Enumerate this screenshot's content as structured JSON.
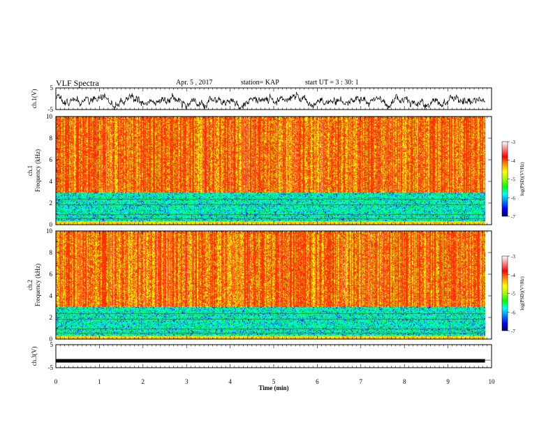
{
  "header": {
    "title": "VLF Spectra",
    "date": "Apr. 5 , 2017",
    "station": "station= KAP",
    "start_ut": "start UT = 3 : 30: 1"
  },
  "colors": {
    "background": "#ffffff",
    "axis": "#000000",
    "trace": "#000000",
    "colormap": [
      "#000080",
      "#0000ff",
      "#00a0ff",
      "#00ffd0",
      "#00ff40",
      "#a0ff00",
      "#ffff00",
      "#ffa000",
      "#ff3000",
      "#ff8080",
      "#ffffff"
    ]
  },
  "chart_data": [
    {
      "type": "line",
      "name": "ch1-waveform",
      "ylabel": "ch.1(V)",
      "xlim": [
        0,
        10
      ],
      "ylim": [
        -5,
        5
      ],
      "yticks": [
        "5",
        "-5"
      ],
      "data_end_min": 9.85,
      "series": [
        {
          "description": "noisy voltage trace oscillating around -1 V, amplitude about 2.5 V"
        }
      ]
    },
    {
      "type": "heatmap",
      "name": "ch1-spectrogram",
      "ylabel": "ch.1 Frequency (kHz)",
      "xlim": [
        0,
        10
      ],
      "ylim": [
        0,
        10
      ],
      "yticks": [
        "0",
        "2",
        "4",
        "6",
        "8",
        "10"
      ],
      "data_end_min": 9.85,
      "band_low_cutoff_khz": 3.0,
      "colorbar": {
        "label": "log(PSD)(V²/Hz)",
        "range": [
          -7,
          -3
        ],
        "ticks": [
          "-3",
          "-4",
          "-5",
          "-6",
          "-7"
        ]
      }
    },
    {
      "type": "heatmap",
      "name": "ch2-spectrogram",
      "ylabel": "ch.2 Frequency (kHz)",
      "xlim": [
        0,
        10
      ],
      "ylim": [
        0,
        10
      ],
      "yticks": [
        "0",
        "2",
        "4",
        "6",
        "8",
        "10"
      ],
      "data_end_min": 9.85,
      "band_low_cutoff_khz": 3.0,
      "colorbar": {
        "label": "log(PSD)(V²/Hz)",
        "range": [
          -7,
          -3
        ],
        "ticks": [
          "-3",
          "-4",
          "-5",
          "-6",
          "-7"
        ]
      }
    },
    {
      "type": "line",
      "name": "ch3-waveform",
      "ylabel": "ch.3(V)",
      "xlim": [
        0,
        10
      ],
      "ylim": [
        -5,
        5
      ],
      "yticks": [
        "5",
        "-5"
      ],
      "data_end_min": 9.85,
      "series": [
        {
          "description": "nearly constant thick trace at about -2 V"
        }
      ]
    }
  ],
  "xaxis": {
    "label": "Time (min)",
    "ticks": [
      "0",
      "1",
      "2",
      "3",
      "4",
      "5",
      "6",
      "7",
      "8",
      "9",
      "10"
    ]
  }
}
